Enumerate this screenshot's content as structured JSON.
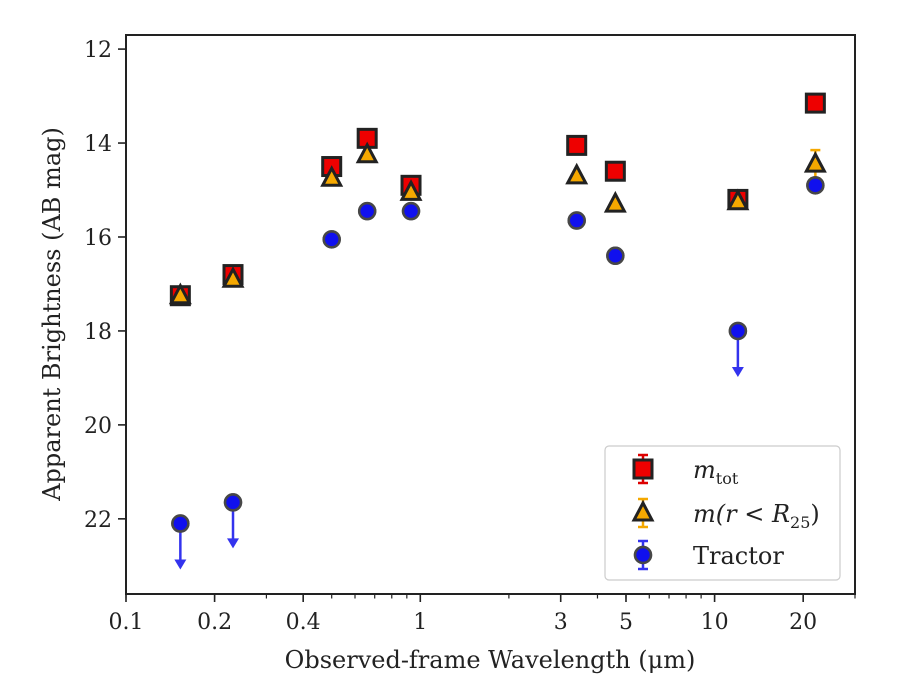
{
  "chart_data": {
    "type": "scatter",
    "title": "",
    "xlabel": "Observed-frame Wavelength (μm)",
    "ylabel": "Apparent Brightness (AB mag)",
    "xscale": "log",
    "xlim": [
      0.1,
      30
    ],
    "ylim": [
      23.6,
      11.7
    ],
    "y_inverted": true,
    "x_ticks": [
      {
        "value": 0.1,
        "label": "0.1"
      },
      {
        "value": 0.2,
        "label": "0.2"
      },
      {
        "value": 0.4,
        "label": "0.4"
      },
      {
        "value": 1,
        "label": "1"
      },
      {
        "value": 3,
        "label": "3"
      },
      {
        "value": 5,
        "label": "5"
      },
      {
        "value": 10,
        "label": "10"
      },
      {
        "value": 20,
        "label": "20"
      }
    ],
    "y_ticks": [
      {
        "value": 12,
        "label": "12"
      },
      {
        "value": 14,
        "label": "14"
      },
      {
        "value": 16,
        "label": "16"
      },
      {
        "value": 18,
        "label": "18"
      },
      {
        "value": 20,
        "label": "20"
      },
      {
        "value": 22,
        "label": "22"
      }
    ],
    "grid": false,
    "legend_position": "bottom-right",
    "series": [
      {
        "name": "m_tot",
        "legend_main": "m",
        "legend_sub": "tot",
        "marker": "square",
        "color": "#ee0000",
        "errorbar_color": "#dd0000",
        "points": [
          {
            "x": 0.153,
            "y": 17.25
          },
          {
            "x": 0.231,
            "y": 16.8
          },
          {
            "x": 0.5,
            "y": 14.5
          },
          {
            "x": 0.66,
            "y": 13.9
          },
          {
            "x": 0.93,
            "y": 14.9
          },
          {
            "x": 3.4,
            "y": 14.05
          },
          {
            "x": 4.6,
            "y": 14.6
          },
          {
            "x": 12.0,
            "y": 15.2
          },
          {
            "x": 22.0,
            "y": 13.15
          }
        ]
      },
      {
        "name": "m(r<R_25)",
        "legend_main": "m(r < R",
        "legend_sub": "25",
        "legend_tail": ")",
        "marker": "triangle",
        "color": "#f5a800",
        "errorbar_color": "#f5a800",
        "points": [
          {
            "x": 0.153,
            "y": 17.25
          },
          {
            "x": 0.231,
            "y": 16.9
          },
          {
            "x": 0.5,
            "y": 14.75
          },
          {
            "x": 0.66,
            "y": 14.25
          },
          {
            "x": 0.93,
            "y": 15.05
          },
          {
            "x": 3.4,
            "y": 14.7
          },
          {
            "x": 4.6,
            "y": 15.3
          },
          {
            "x": 12.0,
            "y": 15.25
          },
          {
            "x": 22.0,
            "y": 14.45,
            "err": 0.3
          }
        ]
      },
      {
        "name": "Tractor",
        "legend_main": "Tractor",
        "marker": "circle",
        "color": "#1010ee",
        "errorbar_color": "#3333ee",
        "points": [
          {
            "x": 0.153,
            "y": 22.1,
            "upper_limit": true
          },
          {
            "x": 0.231,
            "y": 21.65,
            "upper_limit": true
          },
          {
            "x": 0.5,
            "y": 16.05
          },
          {
            "x": 0.66,
            "y": 15.45
          },
          {
            "x": 0.93,
            "y": 15.45
          },
          {
            "x": 3.4,
            "y": 15.65
          },
          {
            "x": 4.6,
            "y": 16.4
          },
          {
            "x": 12.0,
            "y": 18.0,
            "upper_limit": true
          },
          {
            "x": 22.0,
            "y": 14.9
          }
        ]
      }
    ]
  }
}
